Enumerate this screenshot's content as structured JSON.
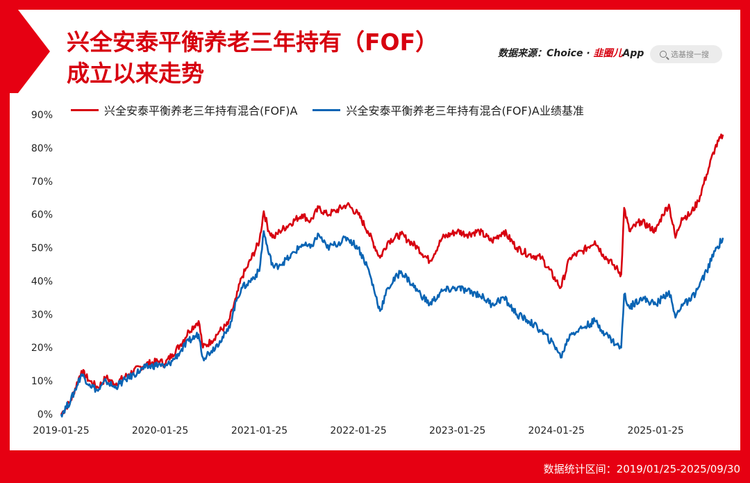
{
  "title": "兴全安泰平衡养老三年持有（FOF）\n成立以来走势",
  "source": {
    "prefix": "数据来源：Choice · ",
    "brand": "韭圈儿",
    "suffix": "App"
  },
  "search": {
    "placeholder": "选基搜一搜"
  },
  "footer": "数据统计区间：2019/01/25-2025/09/30",
  "colors": {
    "fund": "#d7000f",
    "benchmark": "#0a64b4",
    "accent": "#e60012"
  },
  "chart_data": {
    "type": "line",
    "x_ticks": [
      "2019-01-25",
      "2020-01-25",
      "2021-01-25",
      "2022-01-25",
      "2023-01-25",
      "2024-01-25",
      "2025-01-25"
    ],
    "y_ticks": [
      "0%",
      "10%",
      "20%",
      "30%",
      "40%",
      "50%",
      "60%",
      "70%",
      "80%",
      "90%"
    ],
    "ylim": [
      0,
      90
    ],
    "x_range": [
      "2019-01-25",
      "2025-09-30"
    ],
    "legend_position": "top-left",
    "series": [
      {
        "name": "兴全安泰平衡养老三年持有混合(FOF)A",
        "color": "#d7000f",
        "points": [
          [
            "2019-01-25",
            0
          ],
          [
            "2019-03-01",
            4
          ],
          [
            "2019-04-10",
            13
          ],
          [
            "2019-05-10",
            10
          ],
          [
            "2019-06-10",
            8
          ],
          [
            "2019-07-10",
            11
          ],
          [
            "2019-08-10",
            9
          ],
          [
            "2019-10-01",
            12
          ],
          [
            "2019-12-01",
            15
          ],
          [
            "2020-01-25",
            16
          ],
          [
            "2020-02-10",
            15
          ],
          [
            "2020-03-10",
            18
          ],
          [
            "2020-04-10",
            21
          ],
          [
            "2020-05-10",
            25
          ],
          [
            "2020-06-15",
            28
          ],
          [
            "2020-07-01",
            20
          ],
          [
            "2020-08-01",
            22
          ],
          [
            "2020-09-01",
            25
          ],
          [
            "2020-10-01",
            27
          ],
          [
            "2020-11-01",
            35
          ],
          [
            "2020-11-20",
            41
          ],
          [
            "2020-12-10",
            44
          ],
          [
            "2021-01-25",
            52
          ],
          [
            "2021-02-10",
            61
          ],
          [
            "2021-03-01",
            55
          ],
          [
            "2021-03-20",
            53
          ],
          [
            "2021-04-10",
            55
          ],
          [
            "2021-05-15",
            57
          ],
          [
            "2021-07-01",
            60
          ],
          [
            "2021-08-01",
            58
          ],
          [
            "2021-09-01",
            62
          ],
          [
            "2021-10-01",
            60
          ],
          [
            "2021-11-01",
            61
          ],
          [
            "2021-12-15",
            63
          ],
          [
            "2022-01-25",
            60
          ],
          [
            "2022-03-01",
            55
          ],
          [
            "2022-04-15",
            47
          ],
          [
            "2022-05-15",
            52
          ],
          [
            "2022-07-01",
            54
          ],
          [
            "2022-08-01",
            52
          ],
          [
            "2022-09-01",
            50
          ],
          [
            "2022-10-15",
            46
          ],
          [
            "2022-12-01",
            53
          ],
          [
            "2023-01-25",
            55
          ],
          [
            "2023-03-01",
            54
          ],
          [
            "2023-04-15",
            55
          ],
          [
            "2023-06-01",
            52
          ],
          [
            "2023-07-15",
            55
          ],
          [
            "2023-09-01",
            50
          ],
          [
            "2023-10-15",
            48
          ],
          [
            "2023-12-01",
            47
          ],
          [
            "2024-01-25",
            40
          ],
          [
            "2024-02-10",
            38
          ],
          [
            "2024-03-15",
            47
          ],
          [
            "2024-05-01",
            49
          ],
          [
            "2024-06-15",
            52
          ],
          [
            "2024-07-15",
            48
          ],
          [
            "2024-09-01",
            44
          ],
          [
            "2024-09-20",
            42
          ],
          [
            "2024-10-01",
            62
          ],
          [
            "2024-10-20",
            55
          ],
          [
            "2024-12-01",
            58
          ],
          [
            "2025-01-25",
            55
          ],
          [
            "2025-02-20",
            60
          ],
          [
            "2025-03-15",
            63
          ],
          [
            "2025-04-08",
            53
          ],
          [
            "2025-05-01",
            59
          ],
          [
            "2025-06-01",
            60
          ],
          [
            "2025-07-01",
            64
          ],
          [
            "2025-08-01",
            72
          ],
          [
            "2025-09-01",
            80
          ],
          [
            "2025-09-30",
            84
          ]
        ]
      },
      {
        "name": "兴全安泰平衡养老三年持有混合(FOF)A业绩基准",
        "color": "#0a64b4",
        "points": [
          [
            "2019-01-25",
            0
          ],
          [
            "2019-03-01",
            4
          ],
          [
            "2019-04-10",
            12
          ],
          [
            "2019-05-10",
            9
          ],
          [
            "2019-06-10",
            7
          ],
          [
            "2019-07-10",
            10
          ],
          [
            "2019-08-10",
            8
          ],
          [
            "2019-10-01",
            11
          ],
          [
            "2019-12-01",
            14
          ],
          [
            "2020-01-25",
            15
          ],
          [
            "2020-02-10",
            14
          ],
          [
            "2020-03-10",
            16
          ],
          [
            "2020-04-10",
            19
          ],
          [
            "2020-05-10",
            22
          ],
          [
            "2020-06-15",
            24
          ],
          [
            "2020-07-01",
            17
          ],
          [
            "2020-08-01",
            19
          ],
          [
            "2020-09-01",
            22
          ],
          [
            "2020-10-01",
            25
          ],
          [
            "2020-11-01",
            34
          ],
          [
            "2020-11-20",
            38
          ],
          [
            "2020-12-10",
            39
          ],
          [
            "2021-01-25",
            43
          ],
          [
            "2021-02-10",
            55
          ],
          [
            "2021-03-01",
            48
          ],
          [
            "2021-03-20",
            44
          ],
          [
            "2021-04-10",
            45
          ],
          [
            "2021-05-15",
            47
          ],
          [
            "2021-07-01",
            51
          ],
          [
            "2021-08-01",
            50
          ],
          [
            "2021-09-01",
            54
          ],
          [
            "2021-10-01",
            50
          ],
          [
            "2021-11-01",
            51
          ],
          [
            "2021-12-15",
            53
          ],
          [
            "2022-01-25",
            50
          ],
          [
            "2022-03-01",
            44
          ],
          [
            "2022-04-15",
            31
          ],
          [
            "2022-05-15",
            38
          ],
          [
            "2022-07-01",
            43
          ],
          [
            "2022-08-01",
            40
          ],
          [
            "2022-09-01",
            37
          ],
          [
            "2022-10-15",
            33
          ],
          [
            "2022-12-01",
            37
          ],
          [
            "2023-01-25",
            38
          ],
          [
            "2023-03-01",
            37
          ],
          [
            "2023-04-15",
            36
          ],
          [
            "2023-06-01",
            33
          ],
          [
            "2023-07-15",
            35
          ],
          [
            "2023-09-01",
            30
          ],
          [
            "2023-10-15",
            28
          ],
          [
            "2023-12-01",
            25
          ],
          [
            "2024-01-25",
            20
          ],
          [
            "2024-02-10",
            17
          ],
          [
            "2024-03-15",
            24
          ],
          [
            "2024-05-01",
            26
          ],
          [
            "2024-06-15",
            28
          ],
          [
            "2024-07-15",
            25
          ],
          [
            "2024-09-01",
            21
          ],
          [
            "2024-09-20",
            20
          ],
          [
            "2024-10-01",
            36
          ],
          [
            "2024-10-20",
            32
          ],
          [
            "2024-12-01",
            35
          ],
          [
            "2025-01-25",
            33
          ],
          [
            "2025-02-20",
            35
          ],
          [
            "2025-03-15",
            37
          ],
          [
            "2025-04-08",
            29
          ],
          [
            "2025-05-01",
            33
          ],
          [
            "2025-06-01",
            34
          ],
          [
            "2025-07-01",
            38
          ],
          [
            "2025-08-01",
            43
          ],
          [
            "2025-09-01",
            49
          ],
          [
            "2025-09-30",
            53
          ]
        ]
      }
    ]
  }
}
